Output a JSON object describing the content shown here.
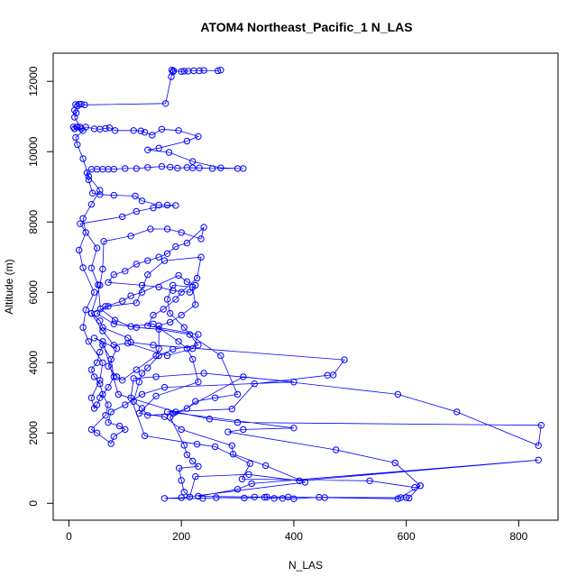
{
  "chart_data": {
    "type": "line",
    "title": "ATOM4 Northeast_Pacific_1 N_LAS",
    "xlabel": "N_LAS",
    "ylabel": "Altitude (m)",
    "xlim": [
      -28,
      870
    ],
    "ylim": [
      -480,
      12800
    ],
    "x_ticks": [
      0,
      200,
      400,
      600,
      800
    ],
    "y_ticks": [
      0,
      2000,
      4000,
      6000,
      8000,
      10000,
      12000
    ],
    "x_tick_labels": [
      "0",
      "200",
      "400",
      "600",
      "800"
    ],
    "y_tick_labels": [
      "0",
      "2000",
      "4000",
      "6000",
      "8000",
      "10000",
      "12000"
    ],
    "grid": false,
    "legend": "none",
    "series_color": "#0000ff",
    "marker": "open-circle",
    "series": [
      {
        "points": [
          [
            270,
            12320
          ],
          [
            265,
            12300
          ],
          [
            240,
            12310
          ],
          [
            232,
            12300
          ],
          [
            222,
            12300
          ],
          [
            212,
            12290
          ],
          [
            205,
            12290
          ],
          [
            200,
            12280
          ],
          [
            186,
            12300
          ],
          [
            183,
            12320
          ],
          [
            185,
            12270
          ],
          [
            182,
            12130
          ],
          [
            172,
            11370
          ],
          [
            28,
            11330
          ],
          [
            22,
            11350
          ],
          [
            18,
            11350
          ],
          [
            12,
            11340
          ],
          [
            15,
            11300
          ],
          [
            10,
            11180
          ],
          [
            13,
            11100
          ],
          [
            10,
            10980
          ],
          [
            20,
            10700
          ],
          [
            14,
            10700
          ],
          [
            8,
            10700
          ],
          [
            10,
            10650
          ],
          [
            22,
            10650
          ],
          [
            30,
            10700
          ],
          [
            45,
            10650
          ],
          [
            55,
            10640
          ],
          [
            65,
            10660
          ],
          [
            72,
            10680
          ],
          [
            82,
            10600
          ],
          [
            115,
            10600
          ],
          [
            128,
            10590
          ],
          [
            135,
            10550
          ],
          [
            148,
            10470
          ],
          [
            165,
            10640
          ],
          [
            195,
            10600
          ],
          [
            230,
            10430
          ],
          [
            210,
            10300
          ],
          [
            160,
            10100
          ],
          [
            140,
            10050
          ],
          [
            178,
            9980
          ],
          [
            220,
            9720
          ],
          [
            270,
            9540
          ],
          [
            300,
            9520
          ],
          [
            310,
            9520
          ],
          [
            255,
            9520
          ],
          [
            232,
            9540
          ],
          [
            220,
            9540
          ],
          [
            210,
            9550
          ],
          [
            193,
            9530
          ],
          [
            180,
            9560
          ],
          [
            165,
            9580
          ],
          [
            140,
            9550
          ],
          [
            120,
            9520
          ],
          [
            100,
            9520
          ],
          [
            80,
            9500
          ],
          [
            70,
            9500
          ],
          [
            60,
            9500
          ],
          [
            50,
            9500
          ],
          [
            40,
            9500
          ],
          [
            32,
            9400
          ],
          [
            35,
            9200
          ],
          [
            42,
            8820
          ],
          [
            55,
            8780
          ],
          [
            80,
            8760
          ],
          [
            118,
            8740
          ],
          [
            130,
            8600
          ],
          [
            160,
            8480
          ],
          [
            175,
            8480
          ],
          [
            190,
            8470
          ],
          [
            150,
            8400
          ],
          [
            120,
            8300
          ],
          [
            95,
            8150
          ],
          [
            20,
            7950
          ],
          [
            50,
            7260
          ],
          [
            40,
            6690
          ],
          [
            52,
            6210
          ],
          [
            56,
            5530
          ],
          [
            82,
            5210
          ],
          [
            110,
            5030
          ],
          [
            150,
            5100
          ],
          [
            195,
            4600
          ],
          [
            210,
            4400
          ],
          [
            220,
            4100
          ],
          [
            230,
            3450
          ],
          [
            155,
            3050
          ],
          [
            125,
            2560
          ],
          [
            170,
            2460
          ],
          [
            200,
            2100
          ],
          [
            290,
            1640
          ],
          [
            292,
            1400
          ],
          [
            350,
            1070
          ],
          [
            420,
            600
          ],
          [
            200,
            160
          ],
          [
            170,
            140
          ],
          [
            238,
            140
          ],
          [
            262,
            160
          ],
          [
            312,
            150
          ],
          [
            348,
            170
          ],
          [
            365,
            140
          ],
          [
            380,
            140
          ],
          [
            400,
            130
          ],
          [
            445,
            170
          ],
          [
            590,
            160
          ],
          [
            600,
            160
          ],
          [
            605,
            150
          ],
          [
            625,
            500
          ],
          [
            580,
            1150
          ],
          [
            475,
            1520
          ],
          [
            283,
            2030
          ],
          [
            310,
            2100
          ],
          [
            400,
            2140
          ],
          [
            175,
            2600
          ],
          [
            290,
            2680
          ],
          [
            330,
            3400
          ],
          [
            460,
            3640
          ],
          [
            470,
            3650
          ],
          [
            490,
            4080
          ],
          [
            150,
            4500
          ],
          [
            110,
            4580
          ],
          [
            105,
            4700
          ],
          [
            60,
            5000
          ],
          [
            55,
            5190
          ],
          [
            40,
            5400
          ],
          [
            70,
            5600
          ],
          [
            120,
            5700
          ],
          [
            140,
            6500
          ],
          [
            170,
            6900
          ],
          [
            235,
            7000
          ],
          [
            228,
            6400
          ],
          [
            200,
            6000
          ],
          [
            190,
            5800
          ],
          [
            168,
            5520
          ],
          [
            150,
            5350
          ],
          [
            140,
            5050
          ],
          [
            230,
            4800
          ],
          [
            220,
            4400
          ],
          [
            175,
            4200
          ],
          [
            105,
            4550
          ],
          [
            80,
            4500
          ],
          [
            60,
            4900
          ],
          [
            40,
            5400
          ],
          [
            55,
            6200
          ],
          [
            60,
            6660
          ],
          [
            62,
            7450
          ],
          [
            110,
            7600
          ],
          [
            145,
            7800
          ],
          [
            175,
            7800
          ],
          [
            200,
            7700
          ],
          [
            235,
            7520
          ],
          [
            240,
            7850
          ],
          [
            210,
            7400
          ],
          [
            190,
            7300
          ],
          [
            175,
            7100
          ],
          [
            160,
            7000
          ],
          [
            140,
            6900
          ],
          [
            120,
            6800
          ],
          [
            100,
            6600
          ],
          [
            80,
            6500
          ],
          [
            70,
            6280
          ],
          [
            130,
            6200
          ],
          [
            160,
            6150
          ],
          [
            185,
            6050
          ],
          [
            215,
            6000
          ],
          [
            225,
            6200
          ],
          [
            210,
            6300
          ],
          [
            195,
            6480
          ],
          [
            130,
            6000
          ],
          [
            110,
            5900
          ],
          [
            95,
            5750
          ],
          [
            65,
            5600
          ],
          [
            50,
            5400
          ],
          [
            80,
            5100
          ],
          [
            120,
            5000
          ],
          [
            160,
            4950
          ],
          [
            215,
            4800
          ],
          [
            270,
            4200
          ],
          [
            300,
            3100
          ],
          [
            260,
            3000
          ],
          [
            225,
            2900
          ],
          [
            210,
            2700
          ],
          [
            185,
            2550
          ],
          [
            140,
            2500
          ],
          [
            130,
            2700
          ],
          [
            115,
            2900
          ],
          [
            125,
            3450
          ],
          [
            130,
            3700
          ],
          [
            140,
            3850
          ],
          [
            160,
            4200
          ],
          [
            185,
            4380
          ],
          [
            230,
            4500
          ],
          [
            205,
            5000
          ],
          [
            180,
            5400
          ],
          [
            175,
            5800
          ],
          [
            185,
            6200
          ],
          [
            220,
            6150
          ],
          [
            225,
            5650
          ],
          [
            200,
            5350
          ],
          [
            180,
            5150
          ],
          [
            160,
            5050
          ],
          [
            160,
            4400
          ],
          [
            155,
            4200
          ],
          [
            120,
            3800
          ],
          [
            95,
            3500
          ],
          [
            85,
            3600
          ],
          [
            70,
            3900
          ],
          [
            85,
            4400
          ],
          [
            45,
            4700
          ],
          [
            60,
            4600
          ],
          [
            88,
            3100
          ],
          [
            190,
            2600
          ],
          [
            250,
            2400
          ],
          [
            300,
            2300
          ],
          [
            840,
            2220
          ],
          [
            835,
            1640
          ],
          [
            690,
            2600
          ],
          [
            585,
            3100
          ],
          [
            310,
            3600
          ],
          [
            180,
            2450
          ],
          [
            205,
            1650
          ],
          [
            210,
            1380
          ],
          [
            220,
            1200
          ],
          [
            230,
            1050
          ],
          [
            196,
            1000
          ],
          [
            200,
            650
          ],
          [
            205,
            320
          ],
          [
            215,
            180
          ],
          [
            225,
            760
          ],
          [
            320,
            820
          ],
          [
            410,
            640
          ],
          [
            835,
            1230
          ],
          [
            325,
            560
          ],
          [
            300,
            400
          ],
          [
            230,
            200
          ],
          [
            330,
            180
          ],
          [
            352,
            180
          ],
          [
            390,
            180
          ],
          [
            455,
            160
          ],
          [
            585,
            130
          ],
          [
            625,
            500
          ],
          [
            615,
            450
          ],
          [
            535,
            640
          ],
          [
            308,
            690
          ],
          [
            322,
            1130
          ],
          [
            260,
            1610
          ],
          [
            228,
            1680
          ],
          [
            135,
            1920
          ],
          [
            110,
            3000
          ],
          [
            115,
            3550
          ],
          [
            155,
            3600
          ],
          [
            240,
            3700
          ],
          [
            400,
            3450
          ],
          [
            170,
            3300
          ],
          [
            130,
            3100
          ],
          [
            100,
            2800
          ],
          [
            75,
            2600
          ],
          [
            70,
            2300
          ],
          [
            90,
            2200
          ],
          [
            100,
            2100
          ],
          [
            80,
            1900
          ],
          [
            75,
            1700
          ],
          [
            50,
            2000
          ],
          [
            40,
            2100
          ],
          [
            65,
            2500
          ],
          [
            70,
            2800
          ],
          [
            60,
            3100
          ],
          [
            55,
            3400
          ],
          [
            45,
            3600
          ],
          [
            40,
            3800
          ],
          [
            50,
            4000
          ],
          [
            55,
            4300
          ],
          [
            60,
            4500
          ],
          [
            75,
            4100
          ],
          [
            80,
            3600
          ],
          [
            70,
            3300
          ],
          [
            55,
            3000
          ],
          [
            50,
            2800
          ],
          [
            45,
            2700
          ],
          [
            40,
            3000
          ],
          [
            55,
            3500
          ],
          [
            60,
            4000
          ],
          [
            35,
            4600
          ],
          [
            25,
            5000
          ],
          [
            30,
            5500
          ],
          [
            45,
            6000
          ],
          [
            25,
            6700
          ],
          [
            18,
            7200
          ],
          [
            30,
            7700
          ],
          [
            25,
            8100
          ],
          [
            40,
            8500
          ],
          [
            55,
            8900
          ],
          [
            35,
            9300
          ],
          [
            25,
            9800
          ],
          [
            15,
            10200
          ],
          [
            12,
            10400
          ],
          [
            25,
            10600
          ],
          [
            15,
            10700
          ]
        ]
      }
    ]
  }
}
